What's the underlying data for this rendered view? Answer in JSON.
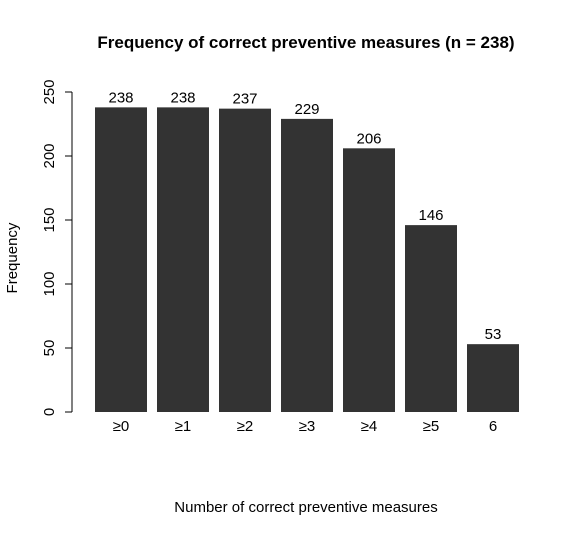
{
  "chart_data": {
    "type": "bar",
    "title": "Frequency of correct preventive measures (n = 238)",
    "xlabel": "Number of correct preventive measures",
    "ylabel": "Frequency",
    "categories": [
      "≥0",
      "≥1",
      "≥2",
      "≥3",
      "≥4",
      "≥5",
      "6"
    ],
    "values": [
      238,
      238,
      237,
      229,
      206,
      146,
      53
    ],
    "ylim": [
      0,
      250
    ],
    "yticks": [
      "0",
      "50",
      "100",
      "150",
      "200",
      "250"
    ],
    "bar_color": "#333333",
    "grid": false,
    "legend": "none"
  }
}
